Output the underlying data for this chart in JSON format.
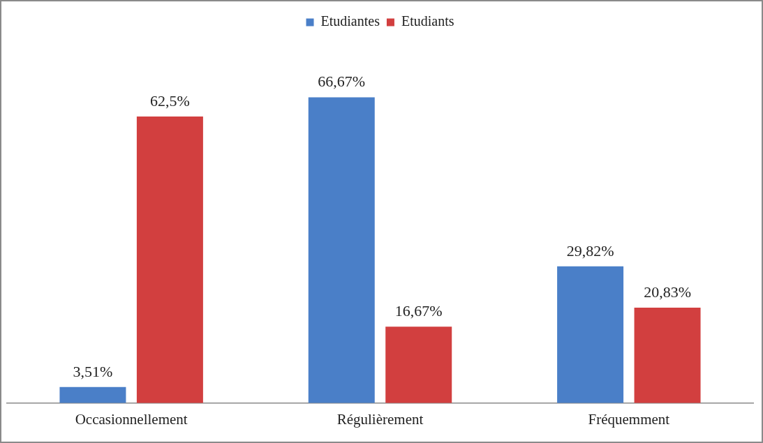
{
  "chart_data": {
    "type": "bar",
    "categories": [
      "Occasionnellement",
      "Régulièrement",
      "Fréquemment"
    ],
    "series": [
      {
        "name": "Etudiantes",
        "color": "#4a7fc8",
        "values": [
          3.51,
          66.67,
          29.82
        ],
        "value_labels": [
          "3,51%",
          "66,67%",
          "29,82%"
        ]
      },
      {
        "name": "Etudiants",
        "color": "#d23f3f",
        "values": [
          62.5,
          16.67,
          20.83
        ],
        "value_labels": [
          "62,5%",
          "16,67%",
          "20,83%"
        ]
      }
    ],
    "tick_labels": "x",
    "legend": "top",
    "grid": false
  }
}
